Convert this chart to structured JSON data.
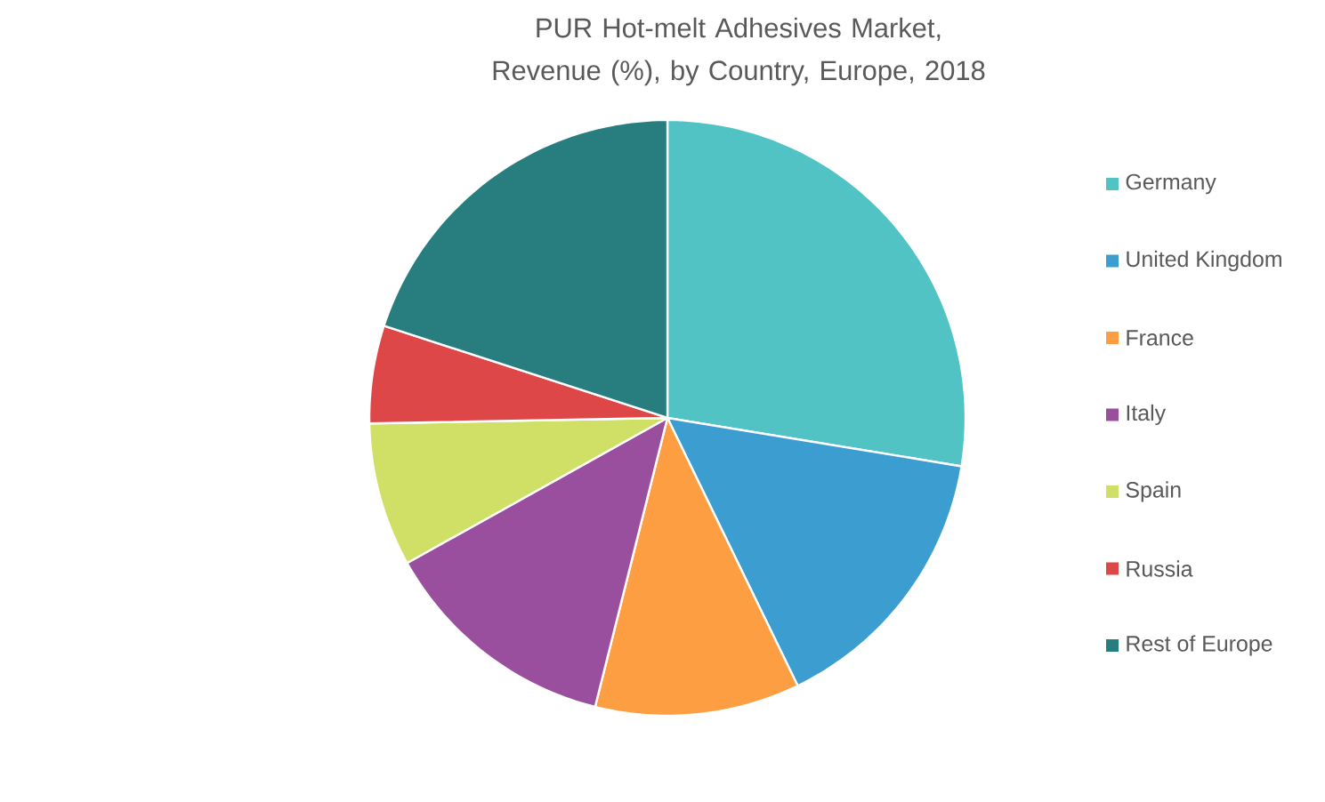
{
  "chart_data": {
    "type": "pie",
    "title": "PUR Hot-melt Adhesives  Market, Revenue (%), by Country, Europe, 2018",
    "categories": [
      "Germany",
      "United Kingdom",
      "France",
      "Italy",
      "Spain",
      "Russia",
      "Rest of Europe"
    ],
    "values": [
      27.6,
      15.2,
      11.1,
      13.0,
      7.8,
      5.3,
      20.0
    ],
    "colors": [
      "#52c3c5",
      "#3c9dd0",
      "#fd9e43",
      "#9a4f9e",
      "#d0df65",
      "#de4747",
      "#287e7e"
    ],
    "legend": "right"
  }
}
